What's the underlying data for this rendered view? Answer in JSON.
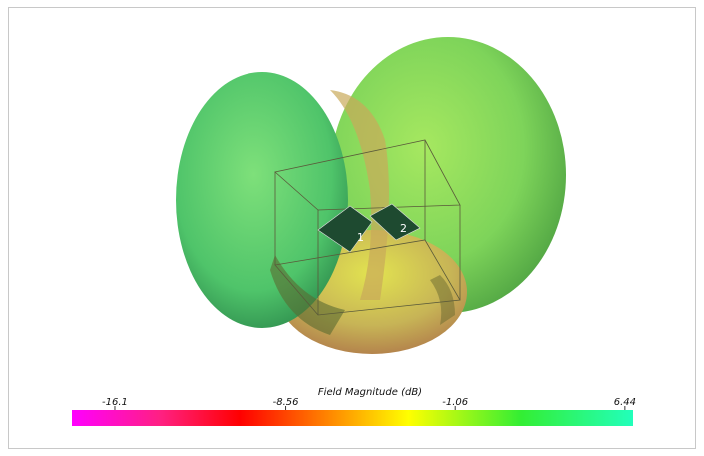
{
  "colorbar": {
    "title": "Field Magnitude (dB)",
    "lim": [
      -18,
      6.8
    ],
    "ticks": [
      -16.1,
      -8.56,
      -1.06,
      6.44
    ]
  },
  "ports": [
    "1",
    "2"
  ]
}
